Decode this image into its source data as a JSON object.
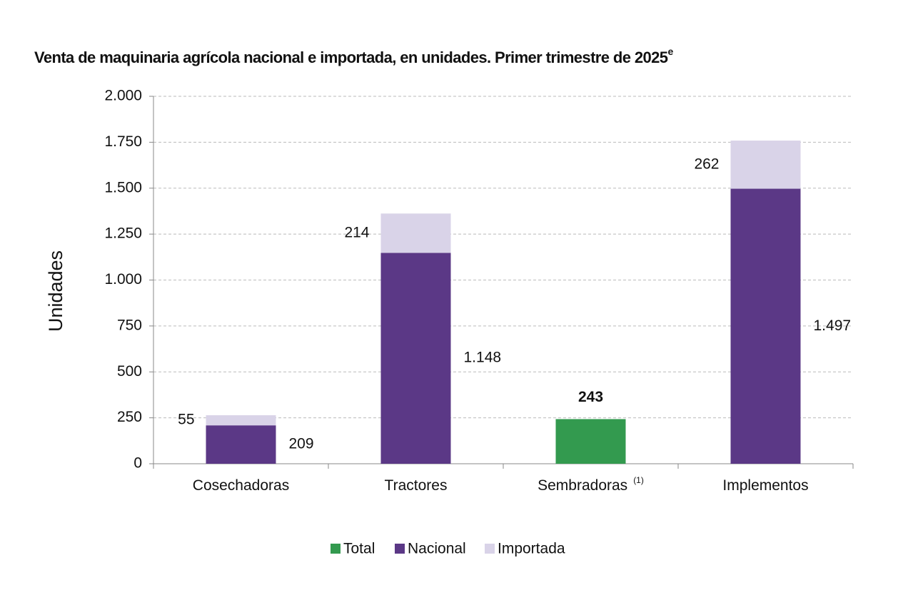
{
  "chart_data": {
    "type": "stacked_bar",
    "title": "Venta de maquinaria agrícola nacional e importada, en unidades. Primer trimestre de 2025",
    "title_superscript": "e",
    "y_label": "Unidades",
    "categories": [
      "Cosechadoras",
      "Tractores",
      "Sembradoras",
      "Implementos"
    ],
    "category_superscripts": [
      null,
      null,
      "(1)",
      null
    ],
    "series": [
      {
        "name": "Total",
        "color": "#339a4f",
        "values": [
          null,
          null,
          243,
          null
        ]
      },
      {
        "name": "Nacional",
        "color": "#5b3886",
        "values": [
          209,
          1148,
          null,
          1497
        ],
        "value_labels": [
          "209",
          "1.148",
          null,
          "1.497"
        ]
      },
      {
        "name": "Importada",
        "color": "#d9d3e8",
        "values": [
          55,
          214,
          null,
          262
        ]
      }
    ],
    "ylim": [
      0,
      2000
    ],
    "yticks": [
      0,
      250,
      500,
      750,
      {
        "value": 1000,
        "label": "1.000"
      },
      {
        "value": 1250,
        "label": "1.250"
      },
      {
        "value": 1500,
        "label": "1.500"
      },
      {
        "value": 1750,
        "label": "1.750"
      },
      {
        "value": 2000,
        "label": "2.000"
      }
    ],
    "grid": true,
    "legend": "bottom"
  }
}
